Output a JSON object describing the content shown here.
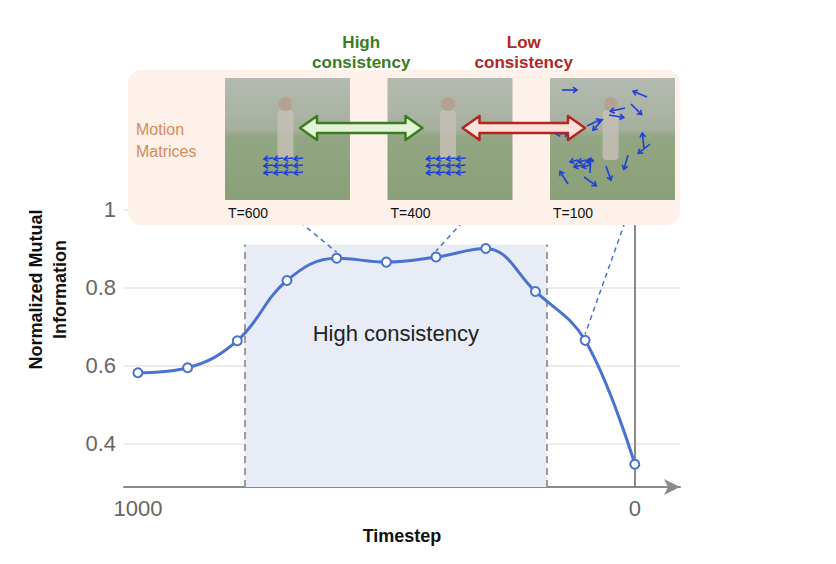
{
  "chart_data": {
    "type": "line",
    "x_label": "Timestep",
    "y_label": "Normalized Mutual Information",
    "x": [
      1000,
      900,
      800,
      700,
      600,
      500,
      400,
      300,
      200,
      100,
      0
    ],
    "series": [
      {
        "color": "#4a72d0",
        "marker": "circle",
        "line_style": "solid",
        "values": [
          0.582,
          0.595,
          0.664,
          0.818,
          0.875,
          0.865,
          0.878,
          0.9,
          0.79,
          0.665,
          0.348
        ]
      }
    ],
    "xlim": [
      1028,
      -91
    ],
    "xticks": [
      1000,
      0
    ],
    "ylim": [
      0.29,
      1.3
    ],
    "yticks": [
      0.4,
      0.6,
      0.8,
      1
    ],
    "grid": true,
    "highlight": {
      "x": [
        785,
        177
      ],
      "top": 0.91,
      "label": "High consistency"
    },
    "panel": {
      "title": "Motion Matrices",
      "frames": [
        {
          "label": "T=600",
          "x": 600
        },
        {
          "label": "T=400",
          "x": 400
        },
        {
          "label": "T=100",
          "x": 100
        }
      ],
      "links": [
        {
          "label": "High consistency",
          "color": "#3a7d1e"
        },
        {
          "label": "Low consistency",
          "color": "#b3261e"
        }
      ]
    }
  }
}
